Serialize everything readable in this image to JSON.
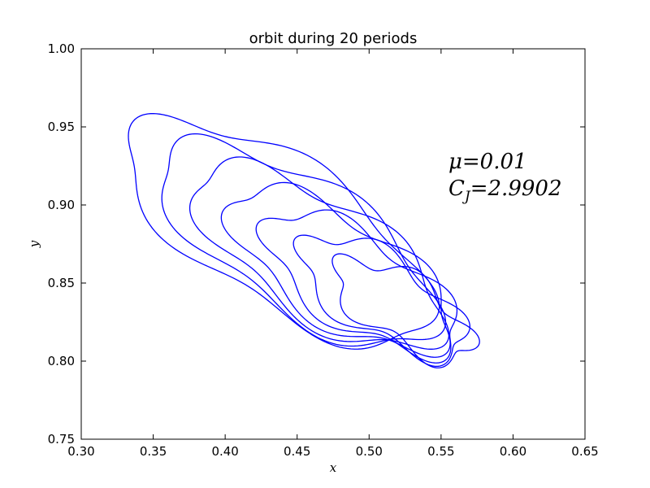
{
  "chart_data": {
    "type": "line",
    "title": "orbit during 20 periods",
    "xlabel": "x",
    "ylabel": "y",
    "xlim": [
      0.3,
      0.65
    ],
    "ylim": [
      0.75,
      1.0
    ],
    "xticks": [
      0.3,
      0.35,
      0.4,
      0.45,
      0.5,
      0.55,
      0.6,
      0.65
    ],
    "yticks": [
      0.75,
      0.8,
      0.85,
      0.9,
      0.95,
      1.0
    ],
    "xtick_labels": [
      "0.30",
      "0.35",
      "0.40",
      "0.45",
      "0.50",
      "0.55",
      "0.60",
      "0.65"
    ],
    "ytick_labels": [
      "0.75",
      "0.80",
      "0.85",
      "0.90",
      "0.95",
      "1.00"
    ],
    "grid": false,
    "line_color": "#0000ff",
    "annotations": {
      "mu": "μ=0.01",
      "cj_main": "C",
      "cj_sub": "J",
      "cj_value": "=2.9902"
    },
    "orbit_model": {
      "center": [
        0.48,
        0.858
      ],
      "outer_radius_x": 0.12,
      "outer_radius_y": 0.085,
      "tilt_angle_deg": -30,
      "loops": 7
    }
  }
}
